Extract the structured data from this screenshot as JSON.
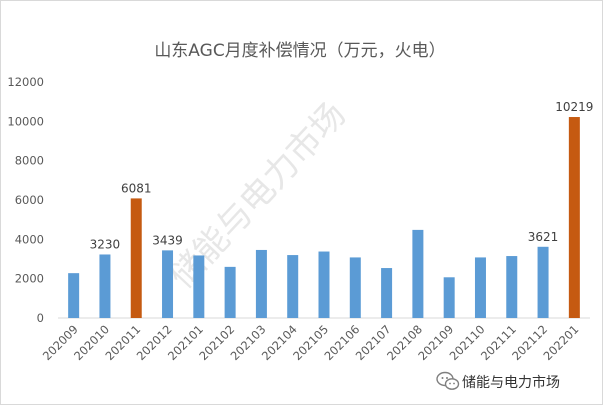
{
  "chart_data": {
    "type": "bar",
    "title": "山东AGC月度补偿情况（万元，火电）",
    "categories": [
      "202009",
      "202010",
      "202011",
      "202012",
      "202101",
      "202102",
      "202103",
      "202104",
      "202105",
      "202106",
      "202107",
      "202108",
      "202109",
      "202110",
      "202111",
      "202112",
      "202201"
    ],
    "values": [
      2280,
      3230,
      6081,
      3439,
      3180,
      2600,
      3460,
      3200,
      3380,
      3080,
      2540,
      4480,
      2070,
      3080,
      3150,
      3621,
      10219
    ],
    "highlight_indices": [
      2,
      16
    ],
    "data_labels": {
      "1": "3230",
      "2": "6081",
      "3": "3439",
      "15": "3621",
      "16": "10219"
    },
    "ylim": [
      0,
      12000
    ],
    "yticks": [
      0,
      2000,
      4000,
      6000,
      8000,
      10000,
      12000
    ],
    "grid": false,
    "colors": {
      "bar": "#5b9bd5",
      "highlight": "#c55a11"
    }
  },
  "watermark": "储能与电力市场",
  "footer": {
    "account_name": "储能与电力市场"
  }
}
